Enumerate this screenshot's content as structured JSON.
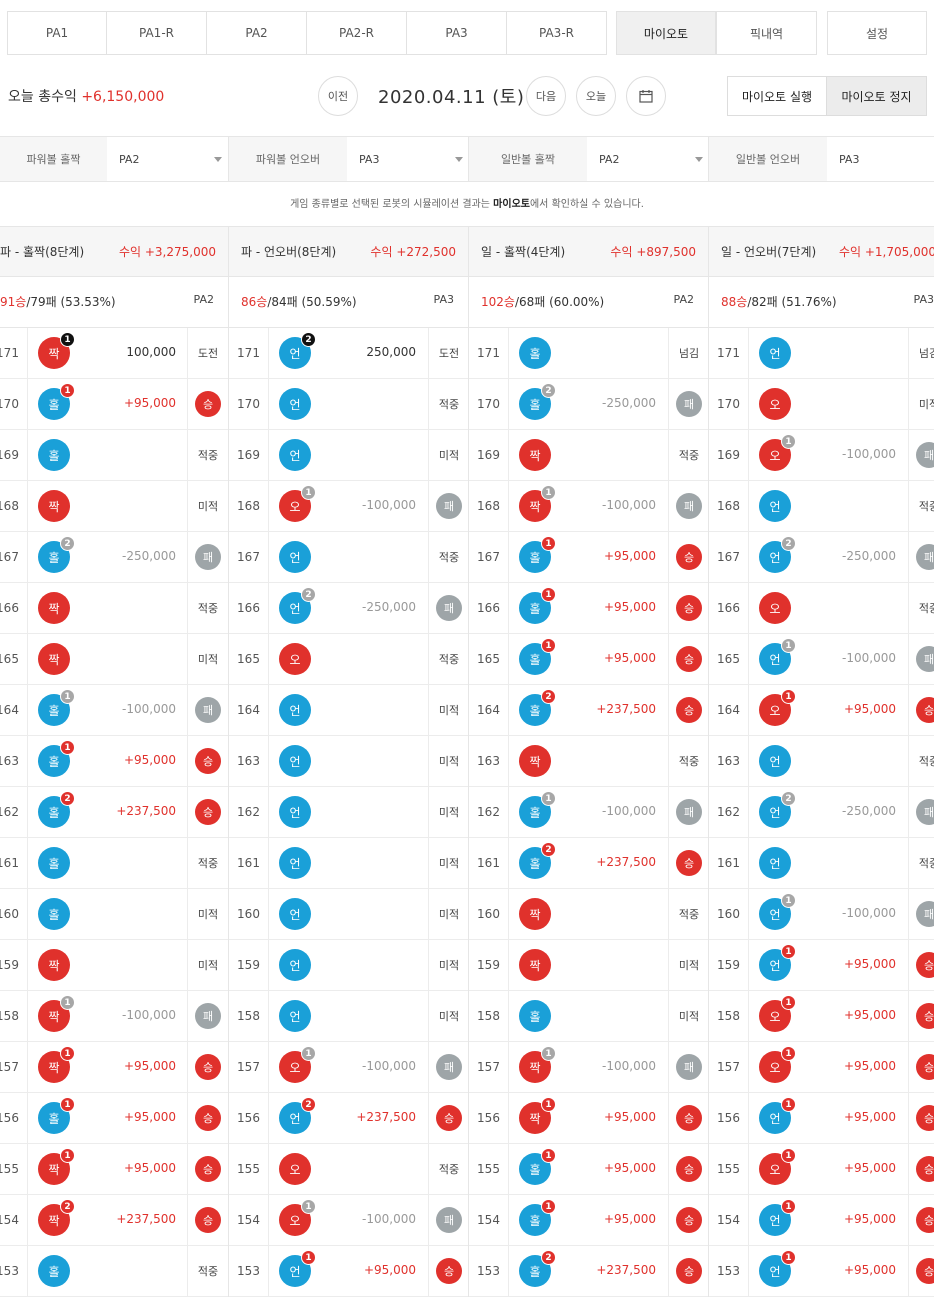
{
  "tabs": [
    {
      "label": "PA1"
    },
    {
      "label": "PA1-R"
    },
    {
      "label": "PA2"
    },
    {
      "label": "PA2-R"
    },
    {
      "label": "PA3"
    },
    {
      "label": "PA3-R"
    },
    {
      "label": "마이오토",
      "active": true
    },
    {
      "label": "픽내역"
    },
    {
      "label": "설정"
    }
  ],
  "header": {
    "profit_label": "오늘 총수익",
    "profit_value": "+6,150,000",
    "prev": "이전",
    "date": "2020.04.11 (토)",
    "next": "다음",
    "today": "오늘",
    "calendar_icon": "calendar-icon",
    "auto_run": "마이오토 실행",
    "auto_stop": "마이오토 정지"
  },
  "selectors": [
    {
      "label": "파워볼 홀짝",
      "value": "PA2"
    },
    {
      "label": "파워볼 언오버",
      "value": "PA3"
    },
    {
      "label": "일반볼 홀짝",
      "value": "PA2"
    },
    {
      "label": "일반볼 언오버",
      "value": "PA3"
    }
  ],
  "notice": {
    "pre": "게임 종류별로 선택된 로봇의 시뮬레이션 결과는 ",
    "bold": "마이오토",
    "post": "에서 확인하실 수 있습니다."
  },
  "columns": [
    {
      "title": "파 - 홀짝(8단계)",
      "profit": "수익 +3,275,000",
      "wins": "91승",
      "rest": "/79패 (53.53%)",
      "robot": "PA2",
      "rows": [
        [
          "171",
          "짝",
          "red",
          "1",
          "black",
          "100,000",
          "bet",
          "도전",
          ""
        ],
        [
          "170",
          "홀",
          "blue",
          "1",
          "red",
          "+95,000",
          "pos",
          "승",
          "win"
        ],
        [
          "169",
          "홀",
          "blue",
          "",
          "",
          "",
          "",
          "적중",
          ""
        ],
        [
          "168",
          "짝",
          "red",
          "",
          "",
          "",
          "",
          "미적",
          ""
        ],
        [
          "167",
          "홀",
          "blue",
          "2",
          "gray",
          "-250,000",
          "neg",
          "패",
          "lose"
        ],
        [
          "166",
          "짝",
          "red",
          "",
          "",
          "",
          "",
          "적중",
          ""
        ],
        [
          "165",
          "짝",
          "red",
          "",
          "",
          "",
          "",
          "미적",
          ""
        ],
        [
          "164",
          "홀",
          "blue",
          "1",
          "gray",
          "-100,000",
          "neg",
          "패",
          "lose"
        ],
        [
          "163",
          "홀",
          "blue",
          "1",
          "red",
          "+95,000",
          "pos",
          "승",
          "win"
        ],
        [
          "162",
          "홀",
          "blue",
          "2",
          "red",
          "+237,500",
          "pos",
          "승",
          "win"
        ],
        [
          "161",
          "홀",
          "blue",
          "",
          "",
          "",
          "",
          "적중",
          ""
        ],
        [
          "160",
          "홀",
          "blue",
          "",
          "",
          "",
          "",
          "미적",
          ""
        ],
        [
          "159",
          "짝",
          "red",
          "",
          "",
          "",
          "",
          "미적",
          ""
        ],
        [
          "158",
          "짝",
          "red",
          "1",
          "gray",
          "-100,000",
          "neg",
          "패",
          "lose"
        ],
        [
          "157",
          "짝",
          "red",
          "1",
          "red",
          "+95,000",
          "pos",
          "승",
          "win"
        ],
        [
          "156",
          "홀",
          "blue",
          "1",
          "red",
          "+95,000",
          "pos",
          "승",
          "win"
        ],
        [
          "155",
          "짝",
          "red",
          "1",
          "red",
          "+95,000",
          "pos",
          "승",
          "win"
        ],
        [
          "154",
          "짝",
          "red",
          "2",
          "red",
          "+237,500",
          "pos",
          "승",
          "win"
        ],
        [
          "153",
          "홀",
          "blue",
          "",
          "",
          "",
          "",
          "적중",
          ""
        ]
      ]
    },
    {
      "title": "파 - 언오버(8단계)",
      "profit": "수익 +272,500",
      "wins": "86승",
      "rest": "/84패 (50.59%)",
      "robot": "PA3",
      "rows": [
        [
          "171",
          "언",
          "blue",
          "2",
          "black",
          "250,000",
          "bet",
          "도전",
          ""
        ],
        [
          "170",
          "언",
          "blue",
          "",
          "",
          "",
          "",
          "적중",
          ""
        ],
        [
          "169",
          "언",
          "blue",
          "",
          "",
          "",
          "",
          "미적",
          ""
        ],
        [
          "168",
          "오",
          "red",
          "1",
          "gray",
          "-100,000",
          "neg",
          "패",
          "lose"
        ],
        [
          "167",
          "언",
          "blue",
          "",
          "",
          "",
          "",
          "적중",
          ""
        ],
        [
          "166",
          "언",
          "blue",
          "2",
          "gray",
          "-250,000",
          "neg",
          "패",
          "lose"
        ],
        [
          "165",
          "오",
          "red",
          "",
          "",
          "",
          "",
          "적중",
          ""
        ],
        [
          "164",
          "언",
          "blue",
          "",
          "",
          "",
          "",
          "미적",
          ""
        ],
        [
          "163",
          "언",
          "blue",
          "",
          "",
          "",
          "",
          "미적",
          ""
        ],
        [
          "162",
          "언",
          "blue",
          "",
          "",
          "",
          "",
          "미적",
          ""
        ],
        [
          "161",
          "언",
          "blue",
          "",
          "",
          "",
          "",
          "미적",
          ""
        ],
        [
          "160",
          "언",
          "blue",
          "",
          "",
          "",
          "",
          "미적",
          ""
        ],
        [
          "159",
          "언",
          "blue",
          "",
          "",
          "",
          "",
          "미적",
          ""
        ],
        [
          "158",
          "언",
          "blue",
          "",
          "",
          "",
          "",
          "미적",
          ""
        ],
        [
          "157",
          "오",
          "red",
          "1",
          "gray",
          "-100,000",
          "neg",
          "패",
          "lose"
        ],
        [
          "156",
          "언",
          "blue",
          "2",
          "red",
          "+237,500",
          "pos",
          "승",
          "win"
        ],
        [
          "155",
          "오",
          "red",
          "",
          "",
          "",
          "",
          "적중",
          ""
        ],
        [
          "154",
          "오",
          "red",
          "1",
          "gray",
          "-100,000",
          "neg",
          "패",
          "lose"
        ],
        [
          "153",
          "언",
          "blue",
          "1",
          "red",
          "+95,000",
          "pos",
          "승",
          "win"
        ]
      ]
    },
    {
      "title": "일 - 홀짝(4단계)",
      "profit": "수익 +897,500",
      "wins": "102승",
      "rest": "/68패 (60.00%)",
      "robot": "PA2",
      "rows": [
        [
          "171",
          "홀",
          "blue",
          "",
          "",
          "",
          "",
          "넘김",
          ""
        ],
        [
          "170",
          "홀",
          "blue",
          "2",
          "gray",
          "-250,000",
          "neg",
          "패",
          "lose"
        ],
        [
          "169",
          "짝",
          "red",
          "",
          "",
          "",
          "",
          "적중",
          ""
        ],
        [
          "168",
          "짝",
          "red",
          "1",
          "gray",
          "-100,000",
          "neg",
          "패",
          "lose"
        ],
        [
          "167",
          "홀",
          "blue",
          "1",
          "red",
          "+95,000",
          "pos",
          "승",
          "win"
        ],
        [
          "166",
          "홀",
          "blue",
          "1",
          "red",
          "+95,000",
          "pos",
          "승",
          "win"
        ],
        [
          "165",
          "홀",
          "blue",
          "1",
          "red",
          "+95,000",
          "pos",
          "승",
          "win"
        ],
        [
          "164",
          "홀",
          "blue",
          "2",
          "red",
          "+237,500",
          "pos",
          "승",
          "win"
        ],
        [
          "163",
          "짝",
          "red",
          "",
          "",
          "",
          "",
          "적중",
          ""
        ],
        [
          "162",
          "홀",
          "blue",
          "1",
          "gray",
          "-100,000",
          "neg",
          "패",
          "lose"
        ],
        [
          "161",
          "홀",
          "blue",
          "2",
          "red",
          "+237,500",
          "pos",
          "승",
          "win"
        ],
        [
          "160",
          "짝",
          "red",
          "",
          "",
          "",
          "",
          "적중",
          ""
        ],
        [
          "159",
          "짝",
          "red",
          "",
          "",
          "",
          "",
          "미적",
          ""
        ],
        [
          "158",
          "홀",
          "blue",
          "",
          "",
          "",
          "",
          "미적",
          ""
        ],
        [
          "157",
          "짝",
          "red",
          "1",
          "gray",
          "-100,000",
          "neg",
          "패",
          "lose"
        ],
        [
          "156",
          "짝",
          "red",
          "1",
          "red",
          "+95,000",
          "pos",
          "승",
          "win"
        ],
        [
          "155",
          "홀",
          "blue",
          "1",
          "red",
          "+95,000",
          "pos",
          "승",
          "win"
        ],
        [
          "154",
          "홀",
          "blue",
          "1",
          "red",
          "+95,000",
          "pos",
          "승",
          "win"
        ],
        [
          "153",
          "홀",
          "blue",
          "2",
          "red",
          "+237,500",
          "pos",
          "승",
          "win"
        ]
      ]
    },
    {
      "title": "일 - 언오버(7단계)",
      "profit": "수익 +1,705,000",
      "wins": "88승",
      "rest": "/82패 (51.76%)",
      "robot": "PA3",
      "rows": [
        [
          "171",
          "언",
          "blue",
          "",
          "",
          "",
          "",
          "넘김",
          ""
        ],
        [
          "170",
          "오",
          "red",
          "",
          "",
          "",
          "",
          "미적",
          ""
        ],
        [
          "169",
          "오",
          "red",
          "1",
          "gray",
          "-100,000",
          "neg",
          "패",
          "lose"
        ],
        [
          "168",
          "언",
          "blue",
          "",
          "",
          "",
          "",
          "적중",
          ""
        ],
        [
          "167",
          "언",
          "blue",
          "2",
          "gray",
          "-250,000",
          "neg",
          "패",
          "lose"
        ],
        [
          "166",
          "오",
          "red",
          "",
          "",
          "",
          "",
          "적중",
          ""
        ],
        [
          "165",
          "언",
          "blue",
          "1",
          "gray",
          "-100,000",
          "neg",
          "패",
          "lose"
        ],
        [
          "164",
          "오",
          "red",
          "1",
          "red",
          "+95,000",
          "pos",
          "승",
          "win"
        ],
        [
          "163",
          "언",
          "blue",
          "",
          "",
          "",
          "",
          "적중",
          ""
        ],
        [
          "162",
          "언",
          "blue",
          "2",
          "gray",
          "-250,000",
          "neg",
          "패",
          "lose"
        ],
        [
          "161",
          "언",
          "blue",
          "",
          "",
          "",
          "",
          "적중",
          ""
        ],
        [
          "160",
          "언",
          "blue",
          "1",
          "gray",
          "-100,000",
          "neg",
          "패",
          "lose"
        ],
        [
          "159",
          "언",
          "blue",
          "1",
          "red",
          "+95,000",
          "pos",
          "승",
          "win"
        ],
        [
          "158",
          "오",
          "red",
          "1",
          "red",
          "+95,000",
          "pos",
          "승",
          "win"
        ],
        [
          "157",
          "오",
          "red",
          "1",
          "red",
          "+95,000",
          "pos",
          "승",
          "win"
        ],
        [
          "156",
          "언",
          "blue",
          "1",
          "red",
          "+95,000",
          "pos",
          "승",
          "win"
        ],
        [
          "155",
          "오",
          "red",
          "1",
          "red",
          "+95,000",
          "pos",
          "승",
          "win"
        ],
        [
          "154",
          "언",
          "blue",
          "1",
          "red",
          "+95,000",
          "pos",
          "승",
          "win"
        ],
        [
          "153",
          "언",
          "blue",
          "1",
          "red",
          "+95,000",
          "pos",
          "승",
          "win"
        ]
      ]
    }
  ]
}
